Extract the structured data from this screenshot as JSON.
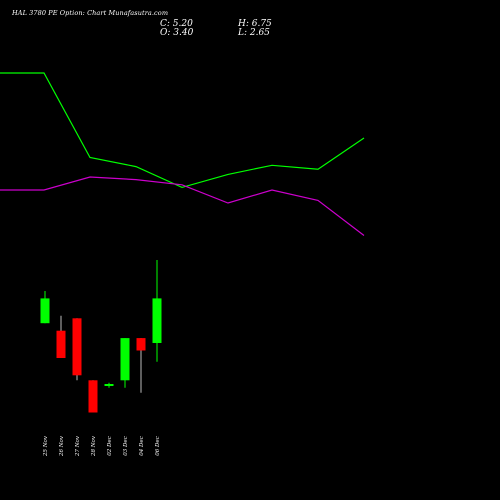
{
  "header": {
    "title": "HAL 3780 PE Option: Chart Munafasutra.com",
    "close": "C: 5.20",
    "open": "O: 3.40",
    "high": "H: 6.75",
    "low": "L: 2.65"
  },
  "colors": {
    "background": "#000000",
    "up": "#00ff00",
    "down": "#ff0000",
    "line_green": "#00ff00",
    "line_magenta": "#cc00cc",
    "text": "#ffffff"
  },
  "chart_data": [
    {
      "type": "line",
      "series": [
        {
          "values": [
            19.0,
            19.0,
            19.0,
            12.5,
            11.8,
            10.2,
            11.2,
            11.9,
            11.6,
            14.0
          ]
        },
        {
          "values": [
            10.0,
            10.0,
            10.0,
            11.0,
            10.8,
            10.4,
            9.0,
            10.0,
            9.2,
            6.5
          ]
        }
      ]
    },
    {
      "type": "candlestick",
      "categories": [
        "25 Nov",
        "26 Nov",
        "27 Nov",
        "28 Nov",
        "02 Dec",
        "03 Dec",
        "04 Dec",
        "06 Dec"
      ],
      "open": [
        4.2,
        3.9,
        4.4,
        1.9,
        1.7,
        1.9,
        3.6,
        3.4
      ],
      "high": [
        5.5,
        4.5,
        4.4,
        1.9,
        1.8,
        3.6,
        3.6,
        6.75
      ],
      "low": [
        4.2,
        2.8,
        1.9,
        0.6,
        1.6,
        1.6,
        1.4,
        2.65
      ],
      "close": [
        5.2,
        2.8,
        2.1,
        0.6,
        1.75,
        3.6,
        3.1,
        5.2
      ]
    }
  ]
}
